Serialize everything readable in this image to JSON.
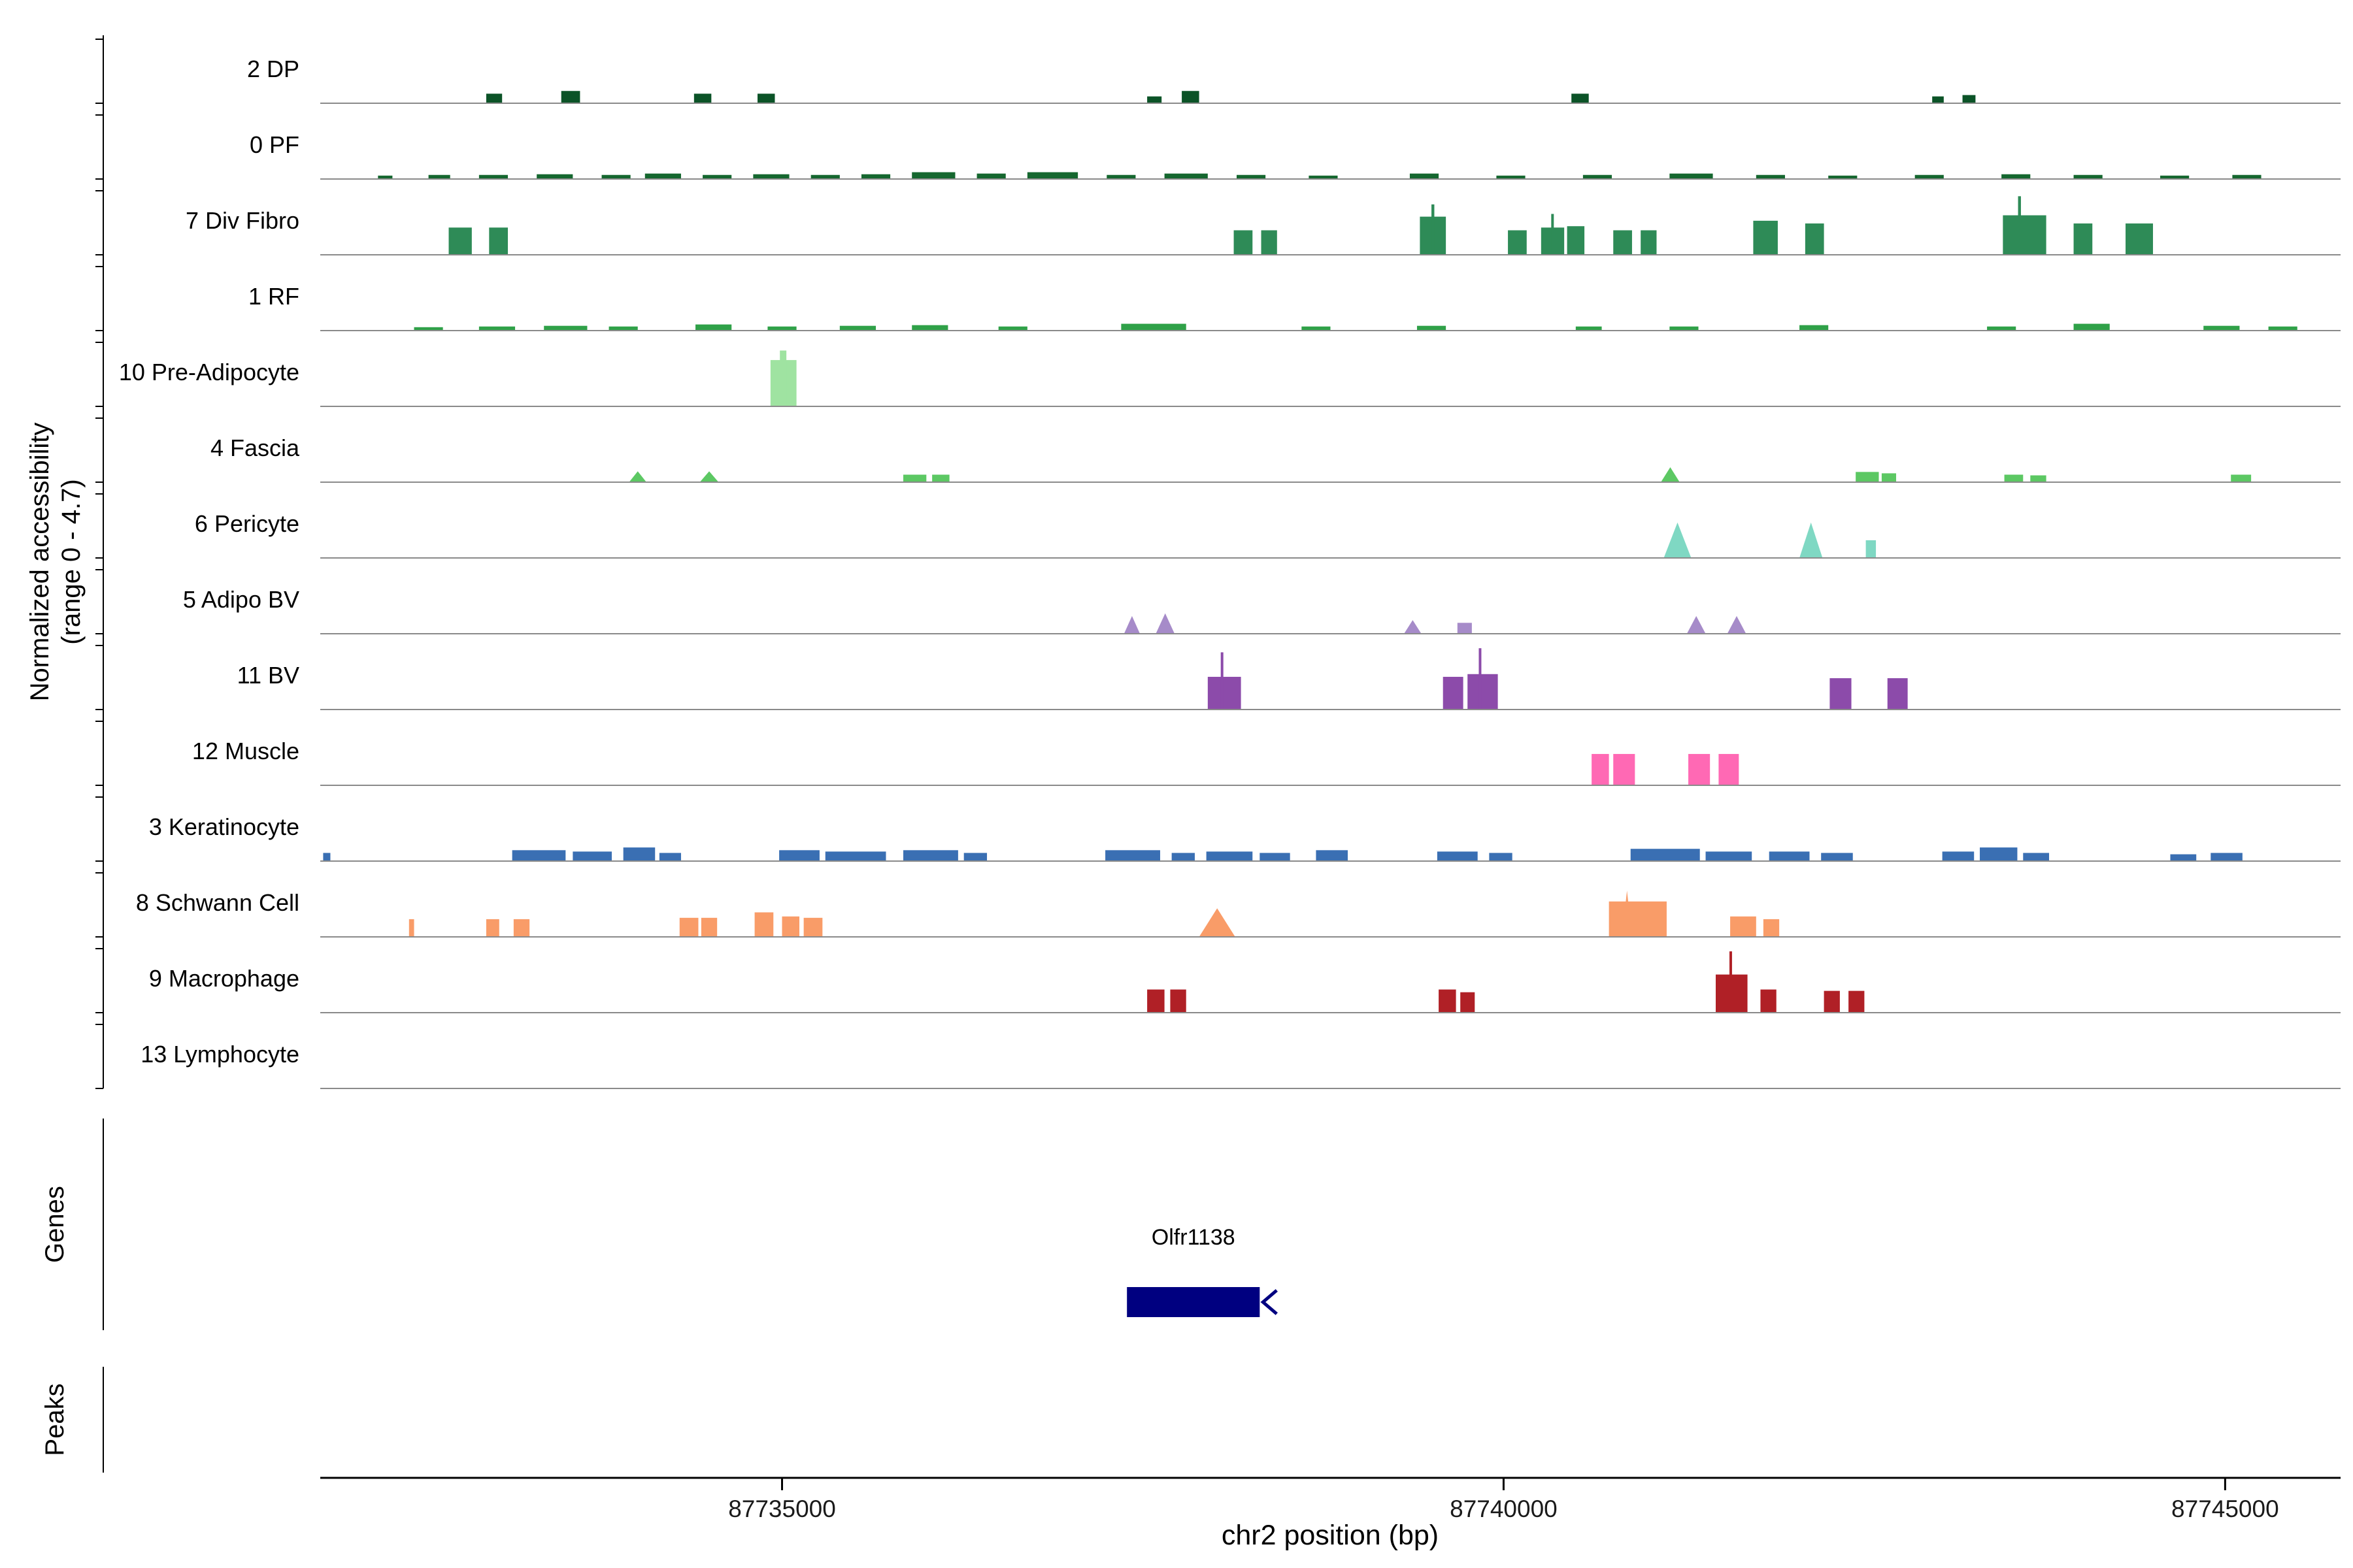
{
  "figure": {
    "ylabel_line1": "Normalized accessibility",
    "ylabel_line2": "(range 0 - 4.7)",
    "genes_section_label": "Genes",
    "peaks_section_label": "Peaks",
    "xlabel": "chr2 position (bp)"
  },
  "colors": {
    "track_baseline": "#8A8A8A",
    "axis_line": "#000000",
    "text": "#000000",
    "tick_text": "#1a1a1a",
    "gene_body": "#000080",
    "background": "#FFFFFF"
  },
  "chart_data": {
    "type": "area",
    "xlabel": "chr2 position (bp)",
    "ylabel": "Normalized accessibility (range 0 - 4.7)",
    "x_range": [
      87731800,
      87745800
    ],
    "x_ticks": [
      87735000,
      87740000,
      87745000
    ],
    "y_range_per_track": [
      0,
      4.7
    ],
    "peaks_format": "start_bp,end_bp,accessibility_value,triangle_flag(optional)",
    "tracks": [
      {
        "label": "2 DP",
        "color": "#0B5327",
        "peaks": [
          [
            87732950,
            87733060,
            0.7
          ],
          [
            87733470,
            87733600,
            0.9
          ],
          [
            87734390,
            87734510,
            0.7
          ],
          [
            87734830,
            87734950,
            0.7
          ],
          [
            87737530,
            87737630,
            0.5
          ],
          [
            87737770,
            87737890,
            0.9
          ],
          [
            87740470,
            87740590,
            0.7
          ],
          [
            87742970,
            87743050,
            0.5
          ],
          [
            87743180,
            87743270,
            0.6
          ]
        ]
      },
      {
        "label": "0 PF",
        "color": "#15672F",
        "peaks": [
          [
            87732200,
            87732300,
            0.25
          ],
          [
            87732550,
            87732700,
            0.3
          ],
          [
            87732900,
            87733100,
            0.3
          ],
          [
            87733300,
            87733550,
            0.35
          ],
          [
            87733750,
            87733950,
            0.3
          ],
          [
            87734050,
            87734300,
            0.4
          ],
          [
            87734450,
            87734650,
            0.3
          ],
          [
            87734800,
            87735050,
            0.35
          ],
          [
            87735200,
            87735400,
            0.3
          ],
          [
            87735550,
            87735750,
            0.35
          ],
          [
            87735900,
            87736200,
            0.5
          ],
          [
            87736350,
            87736550,
            0.4
          ],
          [
            87736700,
            87737050,
            0.5
          ],
          [
            87737250,
            87737450,
            0.3
          ],
          [
            87737650,
            87737950,
            0.4
          ],
          [
            87738150,
            87738350,
            0.3
          ],
          [
            87738650,
            87738850,
            0.25
          ],
          [
            87739350,
            87739550,
            0.4
          ],
          [
            87739950,
            87740150,
            0.25
          ],
          [
            87740550,
            87740750,
            0.3
          ],
          [
            87741150,
            87741450,
            0.4
          ],
          [
            87741750,
            87741950,
            0.3
          ],
          [
            87742250,
            87742450,
            0.25
          ],
          [
            87742850,
            87743050,
            0.3
          ],
          [
            87743450,
            87743650,
            0.35
          ],
          [
            87743950,
            87744150,
            0.3
          ],
          [
            87744550,
            87744750,
            0.25
          ],
          [
            87745050,
            87745250,
            0.3
          ]
        ]
      },
      {
        "label": "7 Div Fibro",
        "color": "#2E8B57",
        "peaks": [
          [
            87732690,
            87732850,
            2.0
          ],
          [
            87732970,
            87733100,
            2.0
          ],
          [
            87738130,
            87738260,
            1.8
          ],
          [
            87738320,
            87738430,
            1.8
          ],
          [
            87739420,
            87739600,
            2.8
          ],
          [
            87739500,
            87739520,
            3.7
          ],
          [
            87740030,
            87740160,
            1.8
          ],
          [
            87740260,
            87740420,
            2.0
          ],
          [
            87740330,
            87740348,
            3.0
          ],
          [
            87740440,
            87740560,
            2.1
          ],
          [
            87740760,
            87740890,
            1.8
          ],
          [
            87740950,
            87741060,
            1.8
          ],
          [
            87741730,
            87741900,
            2.5
          ],
          [
            87742090,
            87742220,
            2.3
          ],
          [
            87743460,
            87743760,
            2.9
          ],
          [
            87743565,
            87743585,
            4.3
          ],
          [
            87743950,
            87744080,
            2.3
          ],
          [
            87744310,
            87744500,
            2.3
          ]
        ]
      },
      {
        "label": "1 RF",
        "color": "#2FA148",
        "peaks": [
          [
            87732450,
            87732650,
            0.25
          ],
          [
            87732900,
            87733150,
            0.3
          ],
          [
            87733350,
            87733650,
            0.35
          ],
          [
            87733800,
            87734000,
            0.3
          ],
          [
            87734400,
            87734650,
            0.45
          ],
          [
            87734900,
            87735100,
            0.3
          ],
          [
            87735400,
            87735650,
            0.35
          ],
          [
            87735900,
            87736150,
            0.4
          ],
          [
            87736500,
            87736700,
            0.3
          ],
          [
            87737350,
            87737800,
            0.5
          ],
          [
            87738600,
            87738800,
            0.3
          ],
          [
            87739400,
            87739600,
            0.35
          ],
          [
            87740500,
            87740680,
            0.3
          ],
          [
            87741150,
            87741350,
            0.3
          ],
          [
            87742050,
            87742250,
            0.4
          ],
          [
            87743350,
            87743550,
            0.3
          ],
          [
            87743950,
            87744200,
            0.5
          ],
          [
            87744850,
            87745100,
            0.35
          ],
          [
            87745300,
            87745500,
            0.3
          ]
        ]
      },
      {
        "label": "10 Pre-Adipocyte",
        "color": "#9FE3A1",
        "peaks": [
          [
            87734920,
            87735100,
            3.4
          ],
          [
            87734985,
            87735030,
            4.1
          ]
        ]
      },
      {
        "label": "4 Fascia",
        "color": "#5CC863",
        "peaks": [
          [
            87733940,
            87734060,
            0.8,
            1
          ],
          [
            87734430,
            87734560,
            0.8,
            1
          ],
          [
            87735840,
            87736000,
            0.55
          ],
          [
            87736040,
            87736160,
            0.55
          ],
          [
            87741090,
            87741220,
            1.1,
            1
          ],
          [
            87742440,
            87742600,
            0.75
          ],
          [
            87742620,
            87742720,
            0.65
          ],
          [
            87743470,
            87743600,
            0.55
          ],
          [
            87743650,
            87743760,
            0.5
          ],
          [
            87745040,
            87745180,
            0.55
          ]
        ]
      },
      {
        "label": "6 Pericyte",
        "color": "#7FD8C3",
        "peaks": [
          [
            87741110,
            87741300,
            2.6,
            1
          ],
          [
            87742050,
            87742210,
            2.6,
            1
          ],
          [
            87742510,
            87742580,
            1.3
          ]
        ]
      },
      {
        "label": "5 Adipo BV",
        "color": "#A68BC9",
        "peaks": [
          [
            87737370,
            87737480,
            1.3,
            1
          ],
          [
            87737590,
            87737720,
            1.5,
            1
          ],
          [
            87739310,
            87739430,
            1.0,
            1
          ],
          [
            87739680,
            87739780,
            0.8
          ],
          [
            87741270,
            87741400,
            1.3,
            1
          ],
          [
            87741550,
            87741680,
            1.3,
            1
          ]
        ]
      },
      {
        "label": "11 BV",
        "color": "#8C4BAA",
        "peaks": [
          [
            87737950,
            87738180,
            2.4
          ],
          [
            87738040,
            87738058,
            4.2
          ],
          [
            87739580,
            87739720,
            2.4
          ],
          [
            87739750,
            87739960,
            2.6
          ],
          [
            87739828,
            87739846,
            4.5
          ],
          [
            87742260,
            87742410,
            2.3
          ],
          [
            87742660,
            87742800,
            2.3
          ]
        ]
      },
      {
        "label": "12 Muscle",
        "color": "#FF69B4",
        "peaks": [
          [
            87740610,
            87740730,
            2.3
          ],
          [
            87740760,
            87740910,
            2.3
          ],
          [
            87741280,
            87741430,
            2.3
          ],
          [
            87741490,
            87741630,
            2.3
          ]
        ]
      },
      {
        "label": "3 Keratinocyte",
        "color": "#3A6FB3",
        "peaks": [
          [
            87731820,
            87731870,
            0.6
          ],
          [
            87733130,
            87733500,
            0.8
          ],
          [
            87733550,
            87733820,
            0.7
          ],
          [
            87733900,
            87734120,
            1.0
          ],
          [
            87734150,
            87734300,
            0.6
          ],
          [
            87734980,
            87735260,
            0.8
          ],
          [
            87735300,
            87735720,
            0.7
          ],
          [
            87735840,
            87736220,
            0.8
          ],
          [
            87736260,
            87736420,
            0.6
          ],
          [
            87737240,
            87737620,
            0.8
          ],
          [
            87737700,
            87737860,
            0.6
          ],
          [
            87737940,
            87738260,
            0.7
          ],
          [
            87738310,
            87738520,
            0.6
          ],
          [
            87738700,
            87738920,
            0.8
          ],
          [
            87739540,
            87739820,
            0.7
          ],
          [
            87739900,
            87740060,
            0.6
          ],
          [
            87740880,
            87741360,
            0.9
          ],
          [
            87741400,
            87741720,
            0.7
          ],
          [
            87741840,
            87742120,
            0.7
          ],
          [
            87742200,
            87742420,
            0.6
          ],
          [
            87743040,
            87743260,
            0.7
          ],
          [
            87743300,
            87743560,
            1.0
          ],
          [
            87743600,
            87743780,
            0.6
          ],
          [
            87744620,
            87744800,
            0.5
          ],
          [
            87744900,
            87745120,
            0.6
          ]
        ]
      },
      {
        "label": "8 Schwann Cell",
        "color": "#F99C68",
        "peaks": [
          [
            87732415,
            87732450,
            1.3
          ],
          [
            87732950,
            87733040,
            1.3
          ],
          [
            87733140,
            87733250,
            1.3
          ],
          [
            87734290,
            87734420,
            1.4
          ],
          [
            87734440,
            87734550,
            1.4
          ],
          [
            87734810,
            87734940,
            1.8
          ],
          [
            87735000,
            87735120,
            1.5
          ],
          [
            87735150,
            87735280,
            1.4
          ],
          [
            87737890,
            87738140,
            2.1,
            1
          ],
          [
            87740730,
            87741130,
            2.6
          ],
          [
            87740820,
            87740890,
            3.4,
            1
          ],
          [
            87741570,
            87741750,
            1.5
          ],
          [
            87741800,
            87741910,
            1.3
          ]
        ]
      },
      {
        "label": "9 Macrophage",
        "color": "#B02026",
        "peaks": [
          [
            87737530,
            87737650,
            1.7
          ],
          [
            87737690,
            87737800,
            1.7
          ],
          [
            87739550,
            87739670,
            1.7
          ],
          [
            87739700,
            87739800,
            1.5
          ],
          [
            87741470,
            87741690,
            2.8
          ],
          [
            87741565,
            87741583,
            4.5
          ],
          [
            87741780,
            87741890,
            1.7
          ],
          [
            87742220,
            87742330,
            1.6
          ],
          [
            87742390,
            87742500,
            1.6
          ]
        ]
      },
      {
        "label": "13 Lymphocyte",
        "color": null,
        "peaks": []
      }
    ],
    "genes": [
      {
        "name": "Olfr1138",
        "start": 87737390,
        "end": 87738310,
        "strand": "-",
        "color": "#000080"
      }
    ],
    "peaks": []
  }
}
